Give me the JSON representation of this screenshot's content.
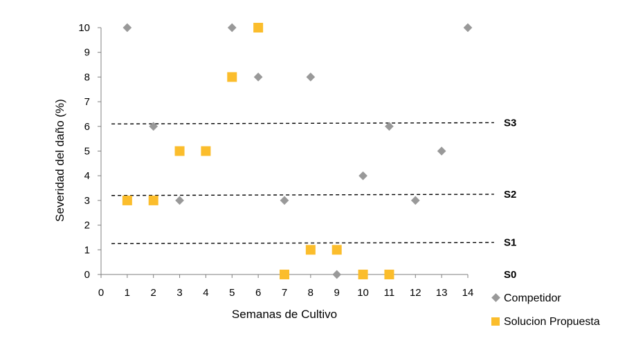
{
  "chart_data": {
    "type": "scatter",
    "title": "",
    "xlabel": "Semanas de Cultivo",
    "ylabel": "Severidad del daño (%)",
    "xlim": [
      0,
      14
    ],
    "ylim": [
      0,
      10
    ],
    "x_ticks": [
      0,
      1,
      2,
      3,
      4,
      5,
      6,
      7,
      8,
      9,
      10,
      11,
      12,
      13,
      14
    ],
    "y_ticks": [
      0,
      1,
      2,
      3,
      4,
      5,
      6,
      7,
      8,
      9,
      10
    ],
    "grid": false,
    "legend_position": "bottom-right",
    "series": [
      {
        "name": "Competidor",
        "marker": "diamond",
        "color": "#999999",
        "points": [
          [
            1,
            10
          ],
          [
            2,
            6
          ],
          [
            3,
            3
          ],
          [
            5,
            10
          ],
          [
            6,
            8
          ],
          [
            7,
            3
          ],
          [
            8,
            8
          ],
          [
            9,
            0
          ],
          [
            10,
            4
          ],
          [
            11,
            6
          ],
          [
            12,
            3
          ],
          [
            13,
            5
          ],
          [
            14,
            10
          ]
        ]
      },
      {
        "name": "Solucion Propuesta",
        "marker": "square",
        "color": "#FBBD2C",
        "points": [
          [
            1,
            3
          ],
          [
            2,
            3
          ],
          [
            3,
            5
          ],
          [
            4,
            5
          ],
          [
            5,
            8
          ],
          [
            6,
            10
          ],
          [
            7,
            0
          ],
          [
            8,
            1
          ],
          [
            9,
            1
          ],
          [
            10,
            0
          ],
          [
            11,
            0
          ]
        ]
      }
    ],
    "reference_lines": [
      {
        "label": "S3",
        "x_start": 0.4,
        "y_start": 6.1,
        "x_end": 15,
        "y_end": 6.15
      },
      {
        "label": "S2",
        "x_start": 0.4,
        "y_start": 3.2,
        "x_end": 15,
        "y_end": 3.25
      },
      {
        "label": "S1",
        "x_start": 0.4,
        "y_start": 1.25,
        "x_end": 15,
        "y_end": 1.3
      },
      {
        "label": "S0",
        "x_start": null,
        "y_start": 0,
        "x_end": null,
        "y_end": 0
      }
    ]
  }
}
